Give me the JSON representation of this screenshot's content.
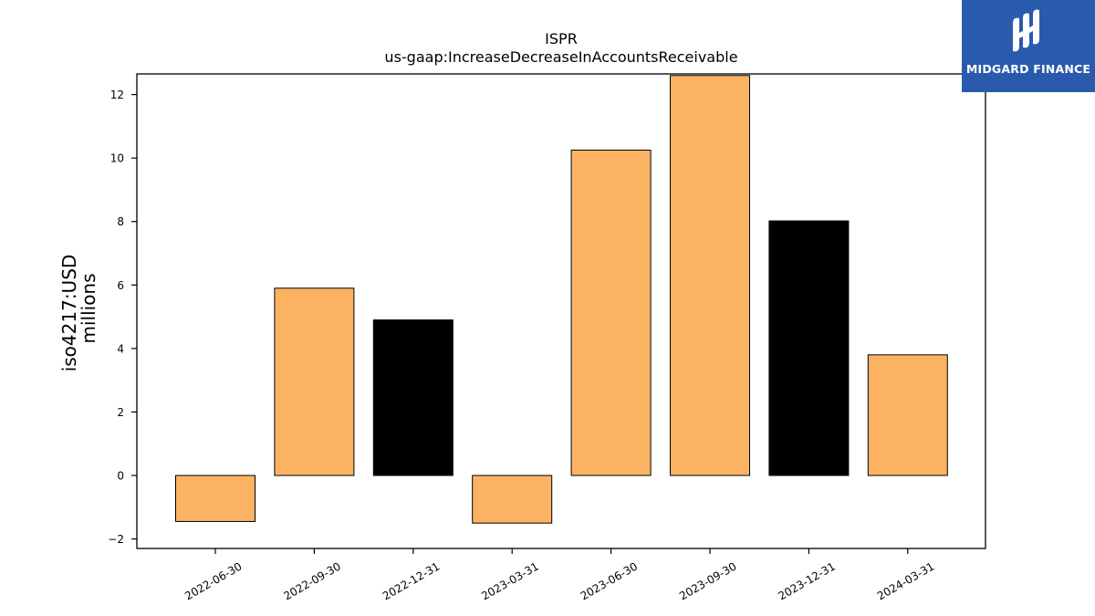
{
  "chart_data": {
    "type": "bar",
    "title": "ISPR",
    "subtitle": "us-gaap:IncreaseDecreaseInAccountsReceivable",
    "ylabel": "iso4217:USD",
    "ylabel_unit": "millions",
    "xlabel": "",
    "categories": [
      "2022-06-30",
      "2022-09-30",
      "2022-12-31",
      "2023-03-31",
      "2023-06-30",
      "2023-09-30",
      "2023-12-31",
      "2024-03-31"
    ],
    "values": [
      -1.45,
      5.9,
      4.9,
      -1.5,
      10.25,
      12.6,
      8.02,
      3.8
    ],
    "bar_colors": [
      "#fbb363",
      "#fbb363",
      "#000000",
      "#fbb363",
      "#fbb363",
      "#fbb363",
      "#000000",
      "#fbb363"
    ],
    "ylim": [
      -2.3,
      12.65
    ],
    "yticks": [
      -2,
      0,
      2,
      4,
      6,
      8,
      10,
      12
    ],
    "ytick_labels": [
      "−2",
      "0",
      "2",
      "4",
      "6",
      "8",
      "10",
      "12"
    ],
    "grid": false,
    "legend": "none"
  },
  "logo": {
    "text": "MIDGARD FINANCE",
    "background": "#2a5aad",
    "icon": "midgard-monogram-icon"
  }
}
